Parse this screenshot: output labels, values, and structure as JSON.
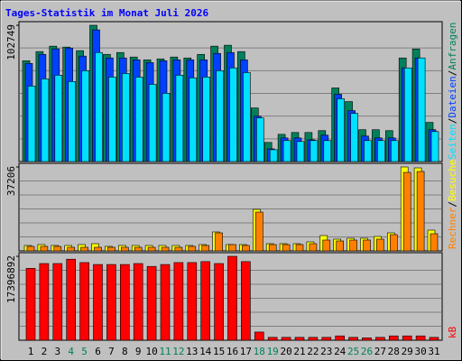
{
  "chart_data": [
    {
      "type": "bar",
      "title": "Tages-Statistik im Monat Juli 2026",
      "ylim": [
        0,
        102749
      ],
      "yticks": [
        102749
      ],
      "separator": "/",
      "series": [
        {
          "name": "Anfragen",
          "color": "#00805C",
          "values": [
            76000,
            82900,
            87000,
            86300,
            83600,
            102749,
            80800,
            82200,
            78800,
            76700,
            77400,
            78800,
            78100,
            80800,
            87000,
            87700,
            82900,
            40400,
            14400,
            20500,
            21900,
            21900,
            23300,
            55500,
            45200,
            24000,
            24000,
            23300,
            78100,
            84900,
            29500
          ]
        },
        {
          "name": "Dateien",
          "color": "#0040FF",
          "values": [
            74000,
            80800,
            85000,
            85600,
            79500,
            99300,
            78100,
            78100,
            76700,
            74600,
            76000,
            76700,
            76700,
            76700,
            81500,
            82200,
            76700,
            34200,
            9600,
            17800,
            17800,
            16400,
            19900,
            50700,
            38400,
            19200,
            17800,
            17800,
            70600,
            78100,
            24000
          ]
        },
        {
          "name": "Seiten",
          "color": "#00E0FF",
          "values": [
            56900,
            62300,
            65100,
            60300,
            68500,
            82200,
            63700,
            66400,
            63700,
            58200,
            51400,
            65100,
            63100,
            63700,
            68500,
            70600,
            67100,
            32900,
            8900,
            15800,
            15100,
            15800,
            15800,
            47300,
            36300,
            15800,
            15800,
            15800,
            70600,
            78100,
            22600
          ]
        }
      ]
    },
    {
      "type": "bar",
      "ylim": [
        0,
        37206
      ],
      "yticks": [
        37206
      ],
      "separator": "/",
      "series": [
        {
          "name": "Besuche",
          "color": "#FFFF00",
          "values": [
            2400,
            2800,
            2400,
            2400,
            2800,
            3200,
            2000,
            2400,
            2400,
            2400,
            2400,
            2400,
            2400,
            2800,
            8400,
            2800,
            2800,
            18400,
            3200,
            3200,
            3200,
            4000,
            6800,
            5200,
            5600,
            5600,
            6400,
            8000,
            37206,
            36800,
            9200
          ]
        },
        {
          "name": "Rechner",
          "color": "#FF8000",
          "values": [
            2000,
            2000,
            2000,
            1600,
            1600,
            1600,
            1600,
            1600,
            1600,
            1600,
            1600,
            1600,
            2000,
            2400,
            8000,
            2800,
            2400,
            17200,
            2800,
            2800,
            2800,
            3200,
            4800,
            4400,
            4800,
            4800,
            5200,
            7200,
            34800,
            35200,
            7600
          ]
        }
      ]
    },
    {
      "type": "bar",
      "ylim": [
        0,
        17396892
      ],
      "yticks": [
        17396892
      ],
      "categories": [
        "1",
        "2",
        "3",
        "4",
        "5",
        "6",
        "7",
        "8",
        "9",
        "10",
        "11",
        "12",
        "13",
        "14",
        "15",
        "16",
        "17",
        "18",
        "19",
        "20",
        "21",
        "22",
        "23",
        "24",
        "25",
        "26",
        "27",
        "28",
        "29",
        "30",
        "31"
      ],
      "highlight_categories": [
        "4",
        "5",
        "11",
        "12",
        "18",
        "19",
        "25",
        "26"
      ],
      "highlight_color": "#00805C",
      "series": [
        {
          "name": "kB",
          "color": "#FF0000",
          "values": [
            14900000,
            15900000,
            15900000,
            16800000,
            16100000,
            15700000,
            15700000,
            15700000,
            15900000,
            15300000,
            15700000,
            16100000,
            16100000,
            16300000,
            15900000,
            17396892,
            16300000,
            1700000,
            600000,
            600000,
            600000,
            600000,
            600000,
            900000,
            600000,
            500000,
            600000,
            900000,
            900000,
            900000,
            600000
          ]
        }
      ]
    }
  ]
}
